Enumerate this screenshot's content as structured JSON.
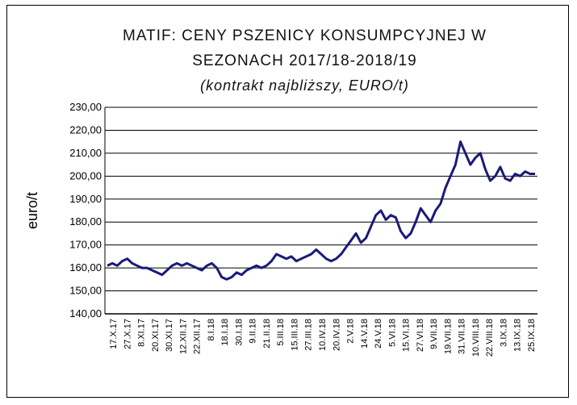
{
  "chart_data": {
    "type": "line",
    "title": "MATIF: CENY PSZENICY KONSUMPCYJNEJ W",
    "title_line2": "SEZONACH 2017/18-2018/19",
    "subtitle": "(kontrakt najbliższy, EURO/t)",
    "xlabel": "",
    "ylabel": "euro/t",
    "ylim": [
      140,
      230
    ],
    "yticks": [
      "230,00",
      "220,00",
      "210,00",
      "200,00",
      "190,00",
      "180,00",
      "170,00",
      "160,00",
      "150,00",
      "140,00"
    ],
    "grid": true,
    "legend": "none",
    "x_tick_labels": [
      "17.X.17",
      "27.X.17",
      "8.XI.17",
      "20.XI.17",
      "30.XI.17",
      "12.XII.17",
      "22.XII.17",
      "8.I.18",
      "18.I.18",
      "30.I.18",
      "9.II.18",
      "21.II.18",
      "5.III.18",
      "15.III.18",
      "27.III.18",
      "10.IV.18",
      "20.IV.18",
      "2.V.18",
      "14.V.18",
      "24.V.18",
      "5.VI.18",
      "15.VI.18",
      "27.VI.18",
      "9.VII.18",
      "19.VII.18",
      "31.VII.18",
      "10.VIII.18",
      "22.VIII.18",
      "3.IX.18",
      "13.IX.18",
      "25.IX.18"
    ],
    "series": [
      {
        "color": "#1a1a7a",
        "values": [
          161,
          162,
          161,
          163,
          164,
          162,
          161,
          160,
          160,
          159,
          158,
          157,
          159,
          161,
          162,
          161,
          162,
          161,
          160,
          159,
          161,
          162,
          160,
          156,
          155,
          156,
          158,
          157,
          159,
          160,
          161,
          160,
          161,
          163,
          166,
          165,
          164,
          165,
          163,
          164,
          165,
          166,
          168,
          166,
          164,
          163,
          164,
          166,
          169,
          172,
          175,
          171,
          173,
          178,
          183,
          185,
          181,
          183,
          182,
          176,
          173,
          175,
          180,
          186,
          183,
          180,
          185,
          188,
          195,
          200,
          205,
          215,
          210,
          205,
          208,
          210,
          203,
          198,
          200,
          204,
          199,
          198,
          201,
          200,
          202,
          201,
          201
        ]
      }
    ]
  }
}
